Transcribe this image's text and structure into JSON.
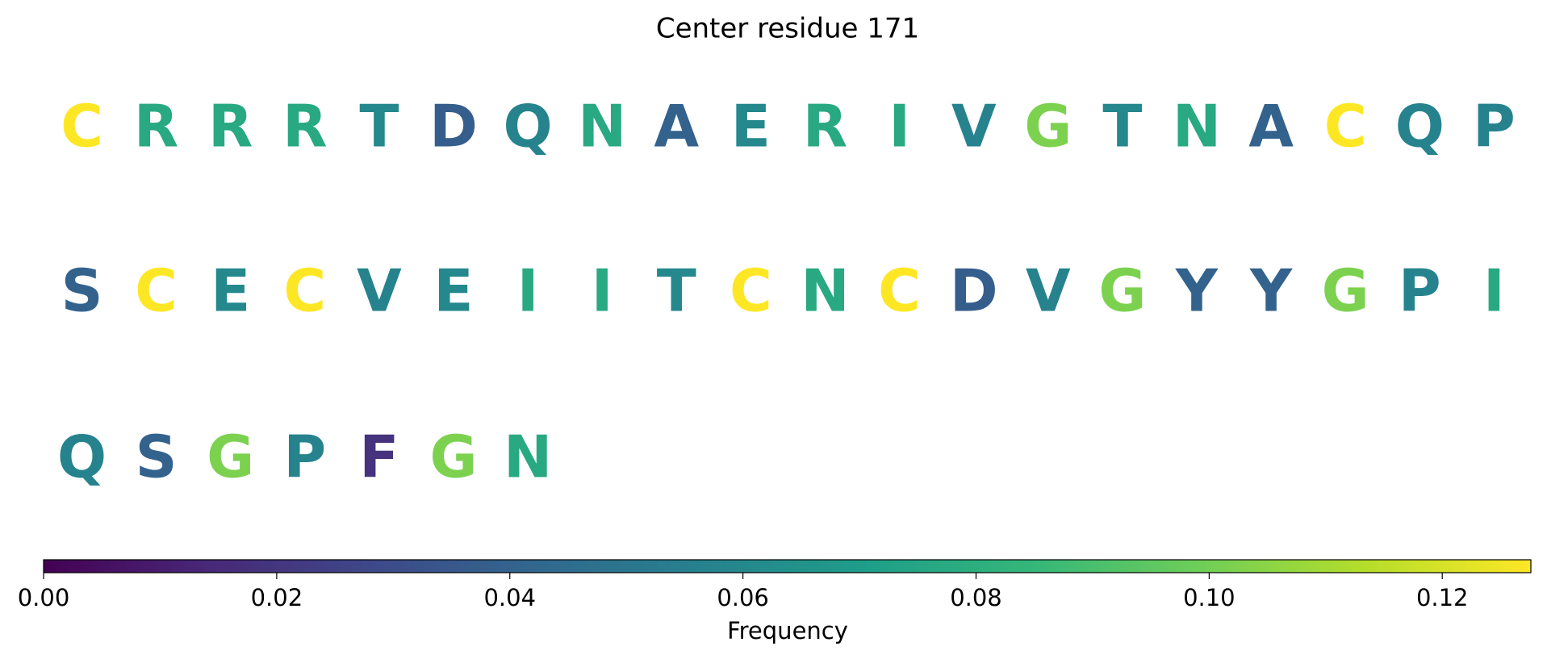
{
  "chart_data": {
    "type": "sequence-heatmap",
    "title": "Center residue 171",
    "colormap": "viridis",
    "categories": [
      "C",
      "R",
      "R",
      "R",
      "T",
      "D",
      "Q",
      "N",
      "A",
      "E",
      "R",
      "I",
      "V",
      "G",
      "T",
      "N",
      "A",
      "C",
      "Q",
      "P",
      "S",
      "C",
      "E",
      "C",
      "V",
      "E",
      "I",
      "I",
      "T",
      "C",
      "N",
      "C",
      "D",
      "V",
      "G",
      "Y",
      "Y",
      "G",
      "P",
      "I",
      "Q",
      "S",
      "G",
      "P",
      "F",
      "G",
      "N"
    ],
    "values": [
      0.128,
      0.077,
      0.077,
      0.077,
      0.06,
      0.038,
      0.057,
      0.077,
      0.04,
      0.06,
      0.077,
      0.077,
      0.057,
      0.102,
      0.06,
      0.077,
      0.04,
      0.128,
      0.057,
      0.057,
      0.04,
      0.128,
      0.06,
      0.128,
      0.057,
      0.06,
      0.077,
      0.077,
      0.06,
      0.128,
      0.077,
      0.128,
      0.038,
      0.057,
      0.102,
      0.04,
      0.04,
      0.102,
      0.057,
      0.077,
      0.057,
      0.04,
      0.102,
      0.057,
      0.019,
      0.102,
      0.077
    ],
    "xlabel": "Frequency",
    "xlim": [
      0,
      0.1276
    ],
    "xticks": [
      {
        "value": 0,
        "label": "0.00"
      },
      {
        "value": 0.02,
        "label": "0.02"
      },
      {
        "value": 0.04,
        "label": "0.04"
      },
      {
        "value": 0.06,
        "label": "0.06"
      },
      {
        "value": 0.08,
        "label": "0.08"
      },
      {
        "value": 0.1,
        "label": "0.10"
      },
      {
        "value": 0.12,
        "label": "0.12"
      }
    ]
  }
}
